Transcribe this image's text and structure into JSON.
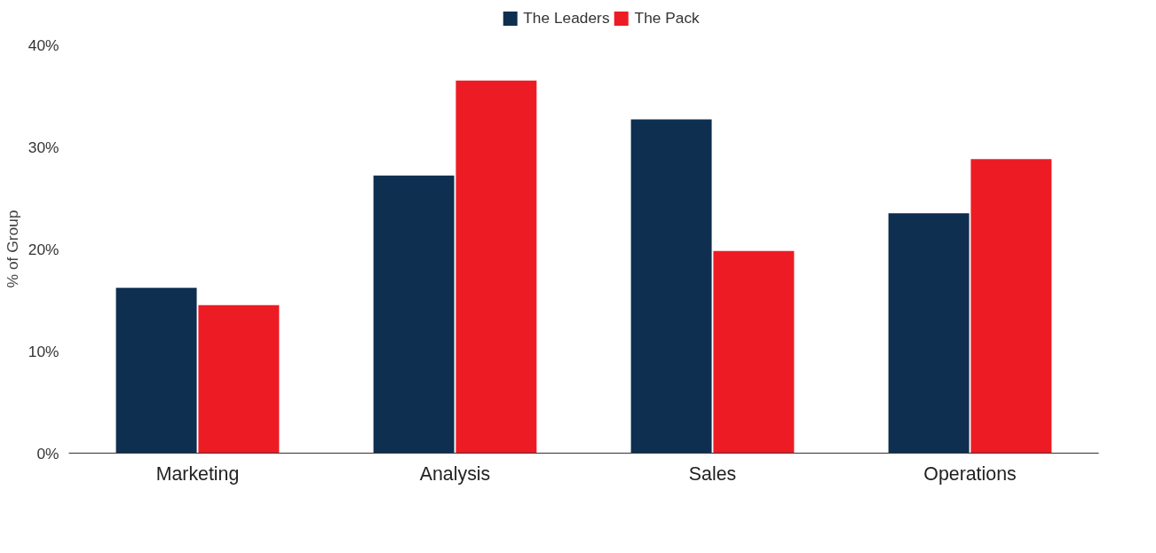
{
  "chart_data": {
    "type": "bar",
    "ylabel": "% of Group",
    "categories": [
      "Marketing",
      "Analysis",
      "Sales",
      "Operations"
    ],
    "series": [
      {
        "name": "The Leaders",
        "color": "#0e2f4f",
        "values": [
          16.2,
          27.2,
          32.7,
          23.5
        ]
      },
      {
        "name": "The Pack",
        "color": "#ed1c24",
        "values": [
          14.5,
          36.5,
          19.8,
          28.8
        ]
      }
    ],
    "ylim": [
      0,
      40
    ],
    "yticks": [
      {
        "value": 0,
        "label": "0%"
      },
      {
        "value": 10,
        "label": "10%"
      },
      {
        "value": 20,
        "label": "20%"
      },
      {
        "value": 30,
        "label": "30%"
      },
      {
        "value": 40,
        "label": "40%"
      }
    ],
    "grid": false,
    "legend": "top"
  }
}
